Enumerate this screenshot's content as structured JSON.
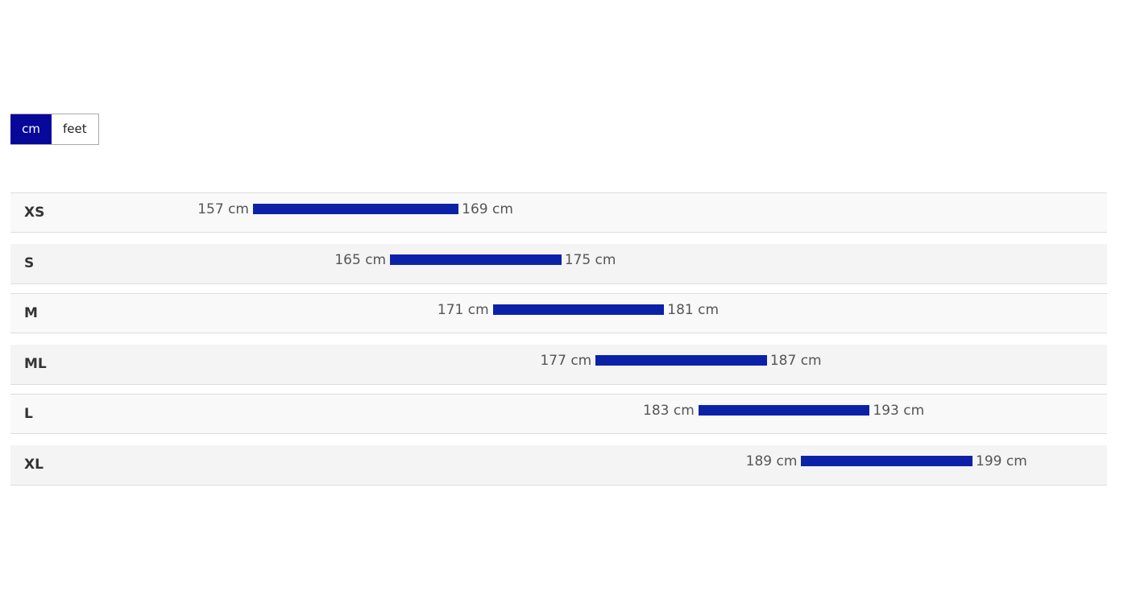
{
  "units": {
    "options": [
      "cm",
      "feet"
    ],
    "selected": "cm"
  },
  "sizes": [
    {
      "label": "XS",
      "min": 157,
      "max": 169,
      "min_label": "157 cm",
      "max_label": "169 cm"
    },
    {
      "label": "S",
      "min": 165,
      "max": 175,
      "min_label": "165 cm",
      "max_label": "175 cm"
    },
    {
      "label": "M",
      "min": 171,
      "max": 181,
      "min_label": "171 cm",
      "max_label": "181 cm"
    },
    {
      "label": "ML",
      "min": 177,
      "max": 187,
      "min_label": "177 cm",
      "max_label": "187 cm"
    },
    {
      "label": "L",
      "min": 183,
      "max": 193,
      "min_label": "183 cm",
      "max_label": "193 cm"
    },
    {
      "label": "XL",
      "min": 189,
      "max": 199,
      "min_label": "189 cm",
      "max_label": "199 cm"
    }
  ]
}
